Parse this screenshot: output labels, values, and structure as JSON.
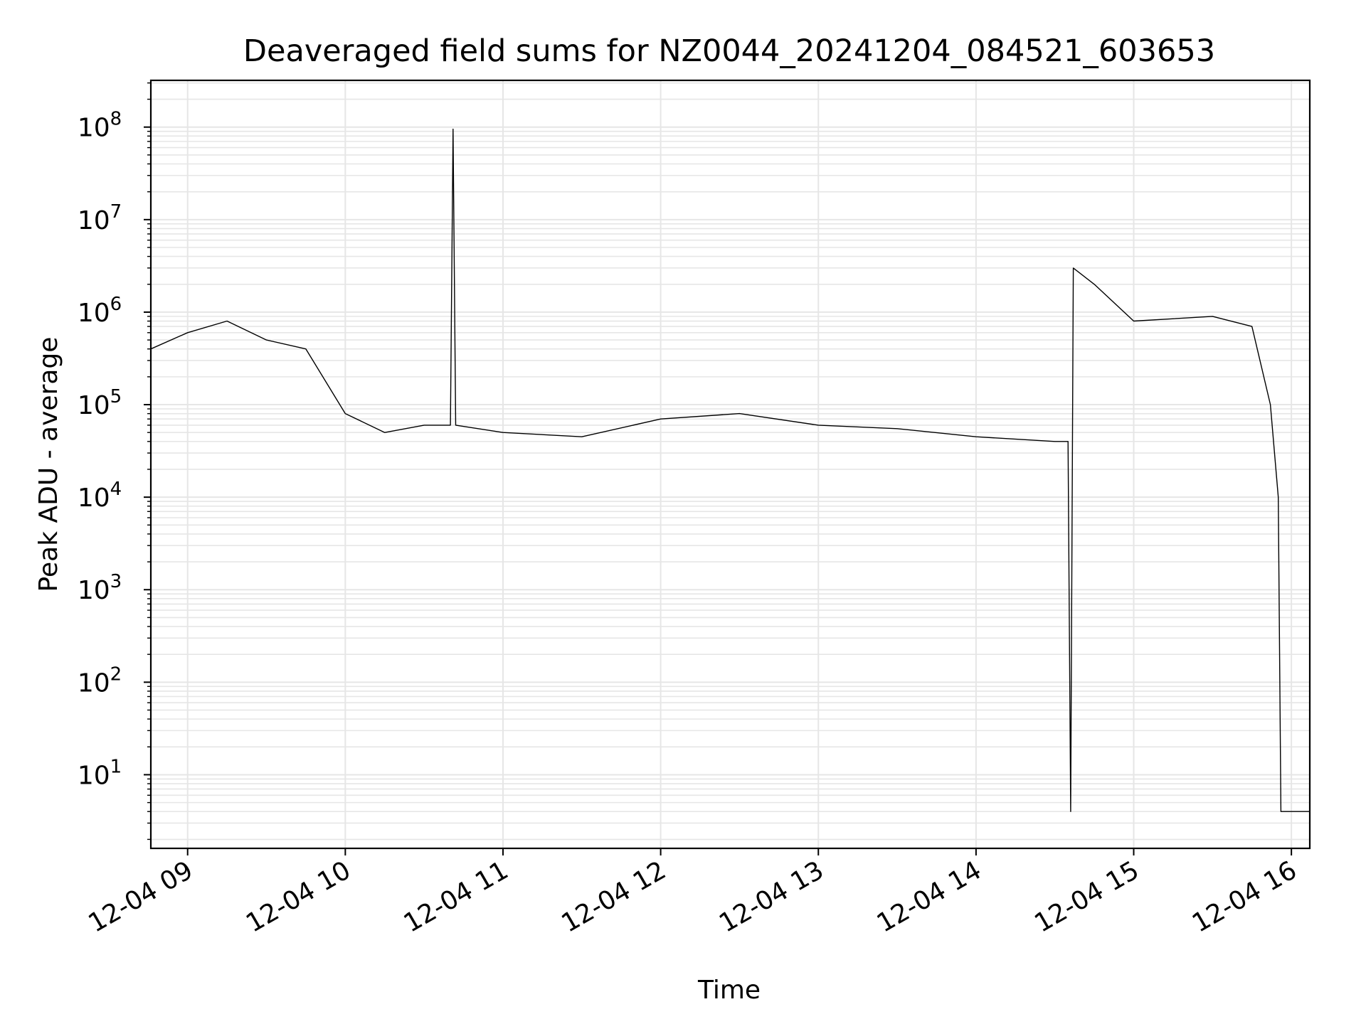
{
  "chart_data": {
    "type": "line",
    "title": "Deaveraged field sums for NZ0044_20241204_084521_603653",
    "xlabel": "Time",
    "ylabel": "Peak ADU - average",
    "x_tick_labels": [
      "12-04 09",
      "12-04 10",
      "12-04 11",
      "12-04 12",
      "12-04 13",
      "12-04 14",
      "12-04 15",
      "12-04 16"
    ],
    "y_tick_labels": [
      {
        "base": "10",
        "exp": "1",
        "value": 10
      },
      {
        "base": "10",
        "exp": "2",
        "value": 100
      },
      {
        "base": "10",
        "exp": "3",
        "value": 1000
      },
      {
        "base": "10",
        "exp": "4",
        "value": 10000
      },
      {
        "base": "10",
        "exp": "5",
        "value": 100000
      },
      {
        "base": "10",
        "exp": "6",
        "value": 1000000
      },
      {
        "base": "10",
        "exp": "7",
        "value": 10000000
      },
      {
        "base": "10",
        "exp": "8",
        "value": 100000000
      }
    ],
    "y_scale": "log",
    "ylim": [
      1.6,
      320000000
    ],
    "xlim": [
      "2024-12-04 08:46",
      "2024-12-04 16:07"
    ],
    "grid": true,
    "line_color": "#000000",
    "grid_color": "#e6e6e6",
    "series": [
      {
        "x": [
          "2024-12-04 08:46",
          "2024-12-04 09:00",
          "2024-12-04 09:15",
          "2024-12-04 09:30",
          "2024-12-04 09:45",
          "2024-12-04 10:00",
          "2024-12-04 10:15",
          "2024-12-04 10:30",
          "2024-12-04 10:40",
          "2024-12-04 10:41",
          "2024-12-04 10:42",
          "2024-12-04 11:00",
          "2024-12-04 11:30",
          "2024-12-04 12:00",
          "2024-12-04 12:30",
          "2024-12-04 13:00",
          "2024-12-04 13:30",
          "2024-12-04 14:00",
          "2024-12-04 14:30",
          "2024-12-04 14:35",
          "2024-12-04 14:36",
          "2024-12-04 14:37",
          "2024-12-04 14:45",
          "2024-12-04 15:00",
          "2024-12-04 15:30",
          "2024-12-04 15:45",
          "2024-12-04 15:52",
          "2024-12-04 15:55",
          "2024-12-04 15:56",
          "2024-12-04 16:07"
        ],
        "values": [
          400000,
          600000,
          800000,
          500000,
          400000,
          80000,
          50000,
          60000,
          60000,
          95000000,
          60000,
          50000,
          45000,
          70000,
          80000,
          60000,
          55000,
          45000,
          40000,
          40000,
          4,
          3000000,
          2000000,
          800000,
          900000,
          700000,
          100000,
          10000,
          4,
          4
        ]
      }
    ]
  }
}
